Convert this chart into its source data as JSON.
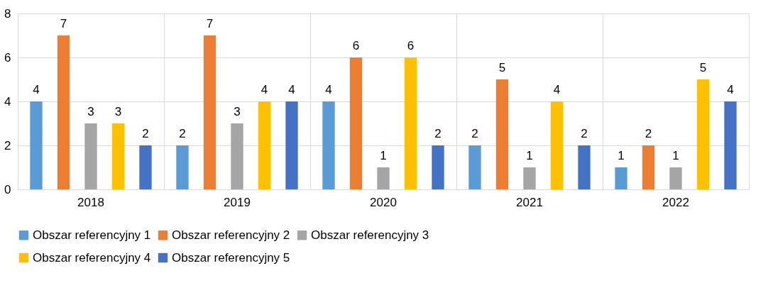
{
  "chart_data": {
    "type": "bar",
    "categories": [
      "2018",
      "2019",
      "2020",
      "2021",
      "2022"
    ],
    "series": [
      {
        "name": "Obszar referencyjny 1",
        "color": "#5b9bd5",
        "values": [
          4,
          2,
          4,
          2,
          1
        ]
      },
      {
        "name": "Obszar referencyjny 2",
        "color": "#ed7d31",
        "values": [
          7,
          7,
          6,
          5,
          2
        ]
      },
      {
        "name": "Obszar referencyjny 3",
        "color": "#a5a5a5",
        "values": [
          3,
          3,
          1,
          1,
          1
        ]
      },
      {
        "name": "Obszar referencyjny 4",
        "color": "#ffc000",
        "values": [
          3,
          4,
          6,
          4,
          5
        ]
      },
      {
        "name": "Obszar referencyjny 5",
        "color": "#4472c4",
        "values": [
          2,
          4,
          2,
          2,
          4
        ]
      }
    ],
    "ylim": [
      0,
      8
    ],
    "yticks": [
      0,
      2,
      4,
      6,
      8
    ],
    "grid": true,
    "legend": "bottom",
    "data_labels": true
  }
}
